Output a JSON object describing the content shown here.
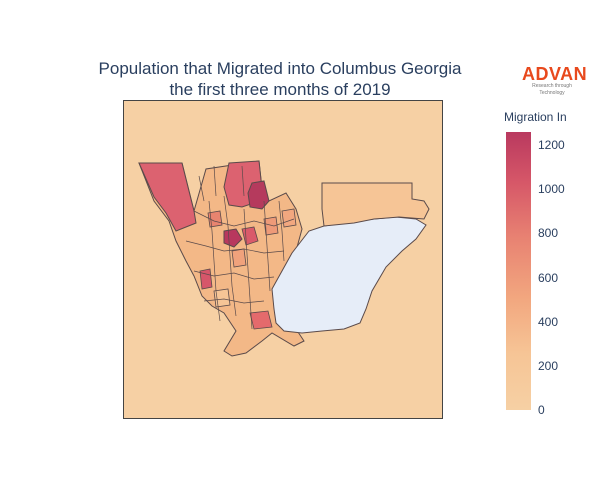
{
  "title_line1": "Population that Migrated into Columbus Georgia",
  "title_line2": "the first three months of 2019",
  "logo": {
    "name": "ADVAN",
    "tagline": "Research through Technology"
  },
  "colorbar": {
    "title": "Migration In",
    "ticks": [
      "1200",
      "1000",
      "800",
      "600",
      "400",
      "200",
      "0"
    ],
    "range": [
      0,
      1260
    ],
    "colors": {
      "max": "#b9395f",
      "high": "#d65768",
      "mid": "#e88272",
      "low": "#f2a77f",
      "min": "#f6d0a4"
    }
  },
  "map": {
    "background_color": "#f6d0a4",
    "no_data_color": "#e6edf8",
    "border_color": "#5a4a4a"
  }
}
